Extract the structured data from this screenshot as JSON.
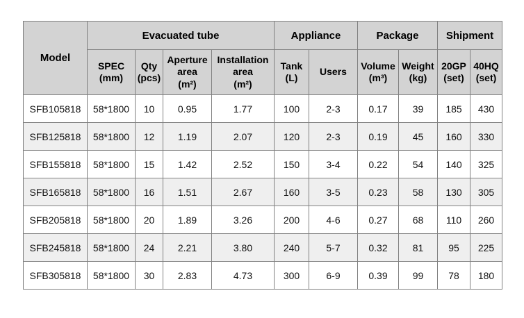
{
  "chart_data": {
    "type": "table",
    "corner_label": "Model",
    "column_groups": [
      {
        "label": "Evacuated tube",
        "span": 4
      },
      {
        "label": "Appliance",
        "span": 2
      },
      {
        "label": "Package",
        "span": 2
      },
      {
        "label": "Shipment",
        "span": 2
      }
    ],
    "columns": [
      {
        "label": "SPEC",
        "unit": "(mm)"
      },
      {
        "label": "Qty",
        "unit": "(pcs)"
      },
      {
        "label": "Aperture area",
        "unit": "(m²)"
      },
      {
        "label": "Installation area",
        "unit": "(m²)"
      },
      {
        "label": "Tank",
        "unit": "(L)"
      },
      {
        "label": "Users",
        "unit": ""
      },
      {
        "label": "Volume",
        "unit": "(m³)"
      },
      {
        "label": "Weight",
        "unit": "(kg)"
      },
      {
        "label": "20GP",
        "unit": "(set)"
      },
      {
        "label": "40HQ",
        "unit": "(set)"
      }
    ],
    "rows": [
      {
        "model": "SFB105818",
        "spec": "58*1800",
        "qty": "10",
        "aperture": "0.95",
        "installation": "1.77",
        "tank": "100",
        "users": "2-3",
        "volume": "0.17",
        "weight": "39",
        "gp20": "185",
        "hq40": "430"
      },
      {
        "model": "SFB125818",
        "spec": "58*1800",
        "qty": "12",
        "aperture": "1.19",
        "installation": "2.07",
        "tank": "120",
        "users": "2-3",
        "volume": "0.19",
        "weight": "45",
        "gp20": "160",
        "hq40": "330"
      },
      {
        "model": "SFB155818",
        "spec": "58*1800",
        "qty": "15",
        "aperture": "1.42",
        "installation": "2.52",
        "tank": "150",
        "users": "3-4",
        "volume": "0.22",
        "weight": "54",
        "gp20": "140",
        "hq40": "325"
      },
      {
        "model": "SFB165818",
        "spec": "58*1800",
        "qty": "16",
        "aperture": "1.51",
        "installation": "2.67",
        "tank": "160",
        "users": "3-5",
        "volume": "0.23",
        "weight": "58",
        "gp20": "130",
        "hq40": "305"
      },
      {
        "model": "SFB205818",
        "spec": "58*1800",
        "qty": "20",
        "aperture": "1.89",
        "installation": "3.26",
        "tank": "200",
        "users": "4-6",
        "volume": "0.27",
        "weight": "68",
        "gp20": "110",
        "hq40": "260"
      },
      {
        "model": "SFB245818",
        "spec": "58*1800",
        "qty": "24",
        "aperture": "2.21",
        "installation": "3.80",
        "tank": "240",
        "users": "5-7",
        "volume": "0.32",
        "weight": "81",
        "gp20": "95",
        "hq40": "225"
      },
      {
        "model": "SFB305818",
        "spec": "58*1800",
        "qty": "30",
        "aperture": "2.83",
        "installation": "4.73",
        "tank": "300",
        "users": "6-9",
        "volume": "0.39",
        "weight": "99",
        "gp20": "78",
        "hq40": "180"
      }
    ],
    "colors": {
      "header_bg": "#d3d3d3",
      "row_bg": "#ffffff",
      "row_alt_bg": "#efefef",
      "border": "#808080",
      "text": "#000000"
    },
    "layout_hints": {
      "grid": "on",
      "header_rows": 2,
      "alternating_rows": true
    }
  }
}
